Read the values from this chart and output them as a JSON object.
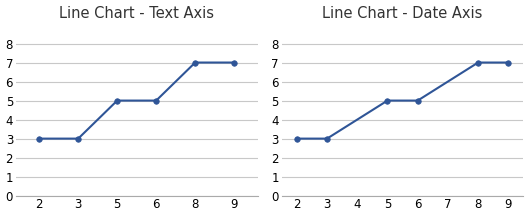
{
  "title_left": "Line Chart - Text Axis",
  "title_right": "Line Chart - Date Axis",
  "x_text": [
    "2",
    "3",
    "5",
    "6",
    "8",
    "9"
  ],
  "x_numeric": [
    2,
    3,
    5,
    6,
    8,
    9
  ],
  "y_values": [
    3,
    3,
    5,
    5,
    7,
    7
  ],
  "ylim": [
    0,
    9
  ],
  "yticks": [
    0,
    1,
    2,
    3,
    4,
    5,
    6,
    7,
    8
  ],
  "xlim_numeric": [
    1.5,
    9.5
  ],
  "xticks_numeric": [
    2,
    3,
    4,
    5,
    6,
    7,
    8,
    9
  ],
  "line_color": "#2F5597",
  "marker": "o",
  "marker_size": 4,
  "marker_color": "#2F5597",
  "bg_color": "#ffffff",
  "grid_color": "#c8c8c8",
  "title_fontsize": 10.5,
  "tick_fontsize": 8.5,
  "figsize": [
    5.29,
    2.17
  ],
  "dpi": 100
}
